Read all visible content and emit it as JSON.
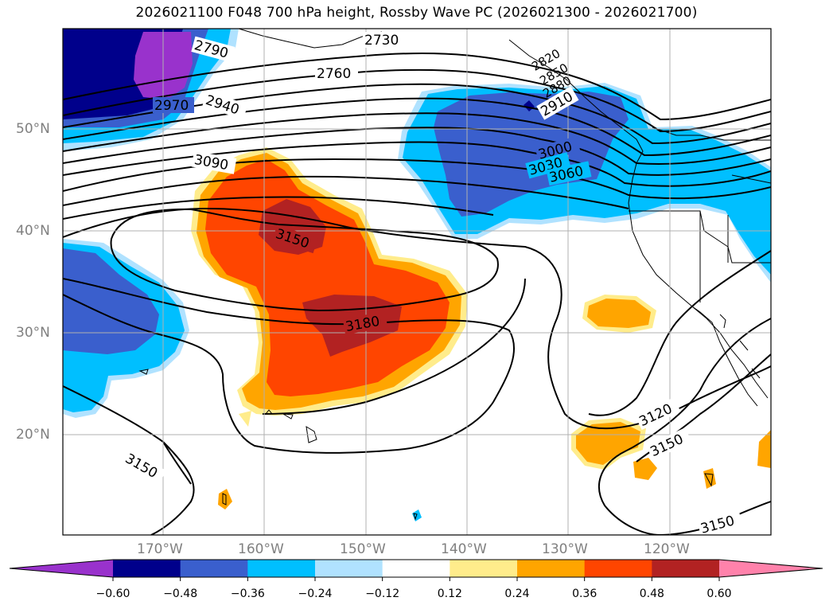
{
  "title": "2026021100 F048 700 hPa height, Rossby Wave PC (2026021300 - 2026021700)",
  "lat_labels": [
    "50°N",
    "40°N",
    "30°N",
    "20°N"
  ],
  "lon_labels": [
    "170°W",
    "160°W",
    "150°W",
    "140°W",
    "130°W",
    "120°W"
  ],
  "colorbar": {
    "tick_labels": [
      "−0.60",
      "−0.48",
      "−0.36",
      "−0.24",
      "−0.12",
      "0.12",
      "0.24",
      "0.36",
      "0.48",
      "0.60"
    ],
    "colors": [
      "#9932cc",
      "#00008b",
      "#3a5fcd",
      "#00bfff",
      "#b0e2ff",
      "#ffffff",
      "#ffec8b",
      "#ffa500",
      "#ff4500",
      "#b22222",
      "#ff82ab"
    ]
  },
  "contour_labels": [
    "2730",
    "2760",
    "2790",
    "2820",
    "2850",
    "2880",
    "2910",
    "2940",
    "2970",
    "3000",
    "3030",
    "3060",
    "3090",
    "3120",
    "3150",
    "3150",
    "3150",
    "3150",
    "3180"
  ]
}
